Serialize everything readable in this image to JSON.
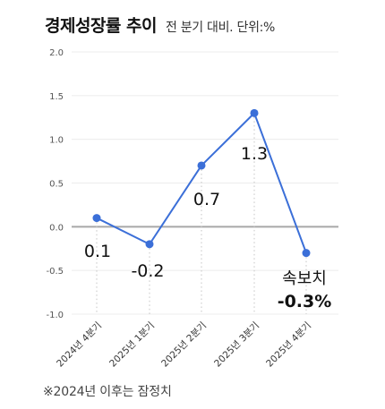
{
  "header": {
    "title": "경제성장률 추이",
    "subtitle": "전 분기 대비. 단위:%"
  },
  "footnote": "※2024년 이후는 잠정치",
  "chart_data": {
    "type": "line",
    "title": "경제성장률 추이",
    "subtitle": "전 분기 대비. 단위:%",
    "categories": [
      "2024년 4분기",
      "2025년 1분기",
      "2025년 2분기",
      "2025년 3분기",
      "2025년 4분기"
    ],
    "values": [
      0.1,
      -0.2,
      0.7,
      1.3,
      -0.3
    ],
    "data_labels": [
      "0.1",
      "-0.2",
      "0.7",
      "1.3",
      "-0.3%"
    ],
    "last_point_note": "속보치",
    "yticks": [
      "2.0",
      "1.5",
      "1.0",
      "0.5",
      "0.0",
      "-0.5",
      "-1.0"
    ],
    "ylim": [
      -1.0,
      2.0
    ],
    "line_color": "#3b6fd8",
    "grid": true,
    "legend": "none"
  }
}
